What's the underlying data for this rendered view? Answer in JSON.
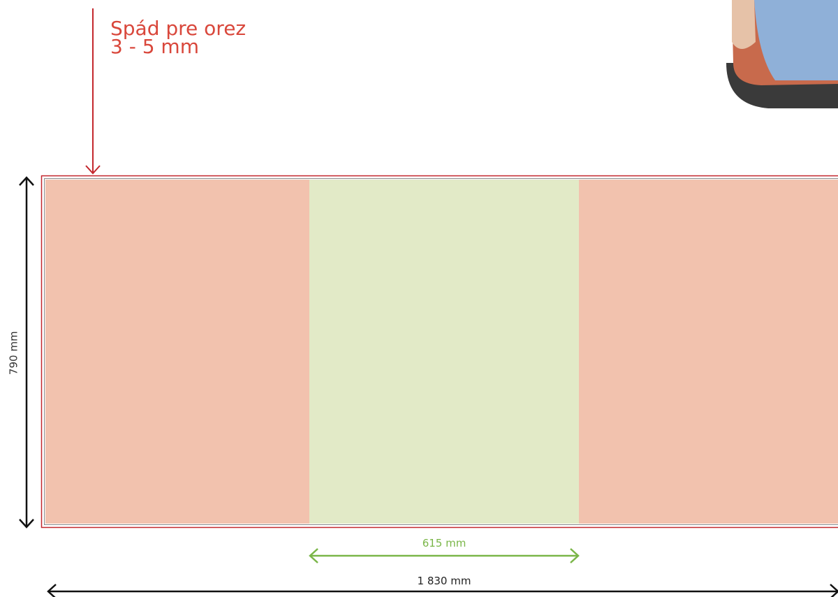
{
  "annotations": {
    "bleed": {
      "title": "Spád pre orez",
      "range": "3 - 5 mm"
    }
  },
  "dimensions": {
    "height": "790 mm",
    "center_width": "615 mm",
    "total_width": "1 830 mm"
  }
}
